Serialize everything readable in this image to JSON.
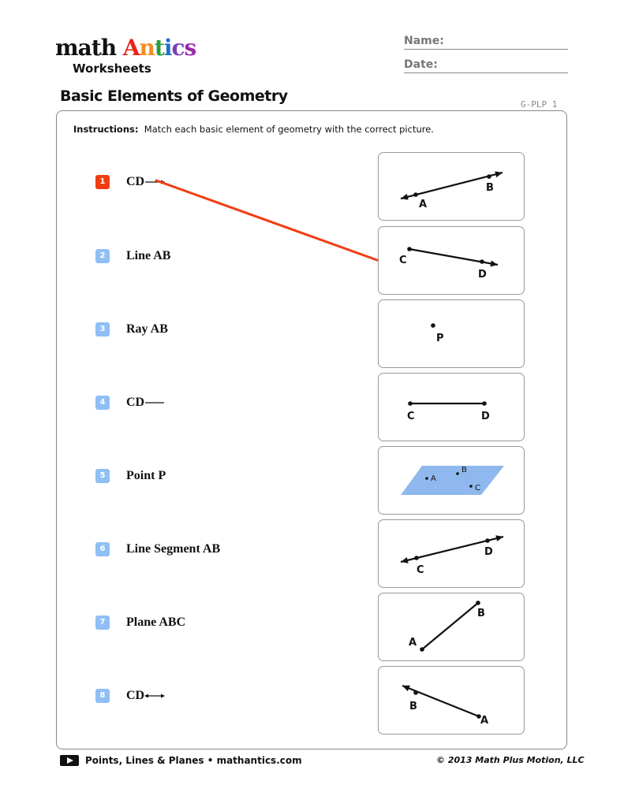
{
  "logo": {
    "math": "math",
    "antics": [
      "A",
      "n",
      "t",
      "i",
      "c",
      "s"
    ],
    "antics_colors": [
      "#e8231b",
      "#f58a1f",
      "#2a9d3a",
      "#1f6fd1",
      "#7a3fb5",
      "#9b2aa8"
    ],
    "worksheets": "Worksheets"
  },
  "header": {
    "name_label": "Name:",
    "date_label": "Date:",
    "title": "Basic Elements of Geometry",
    "code": "G-PLP 1"
  },
  "instructions": {
    "label": "Instructions:",
    "text": "Match each basic element of geometry with the correct picture."
  },
  "colors": {
    "accent": "#f23d12",
    "number_badge": "#8fbff5",
    "plane": "#8fb8ee"
  },
  "items": [
    {
      "n": "1",
      "label": "CD",
      "notation": "ray"
    },
    {
      "n": "2",
      "label": "Line AB"
    },
    {
      "n": "3",
      "label": "Ray AB"
    },
    {
      "n": "4",
      "label": "CD",
      "notation": "segment"
    },
    {
      "n": "5",
      "label": "Point P"
    },
    {
      "n": "6",
      "label": "Line Segment AB"
    },
    {
      "n": "7",
      "label": "Plane ABC"
    },
    {
      "n": "8",
      "label": "CD",
      "notation": "line"
    }
  ],
  "match": {
    "from_item": "1",
    "to_picture": "2"
  },
  "pictures": [
    {
      "type": "line",
      "labels": [
        "A",
        "B"
      ]
    },
    {
      "type": "ray",
      "labels": [
        "C",
        "D"
      ]
    },
    {
      "type": "point",
      "labels": [
        "P"
      ]
    },
    {
      "type": "segment",
      "labels": [
        "C",
        "D"
      ]
    },
    {
      "type": "plane",
      "labels": [
        "A",
        "B",
        "C"
      ]
    },
    {
      "type": "line",
      "labels": [
        "C",
        "D"
      ]
    },
    {
      "type": "segment",
      "labels": [
        "B",
        "A"
      ]
    },
    {
      "type": "ray",
      "labels": [
        "B",
        "A"
      ]
    }
  ],
  "footer": {
    "left": "Points, Lines & Planes • mathantics.com",
    "right": "© 2013 Math Plus Motion, LLC"
  }
}
